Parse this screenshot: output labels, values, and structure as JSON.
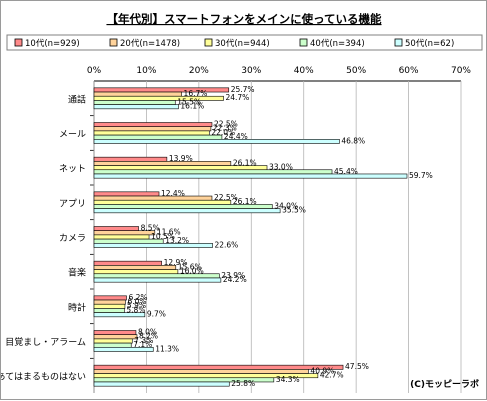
{
  "chart_data": {
    "type": "bar",
    "orientation": "horizontal",
    "title": "【年代別】スマートフォンをメインに使っている機能",
    "credit": "(C)モッピーラボ",
    "xlim": [
      0,
      70
    ],
    "x_ticks": [
      "0%",
      "10%",
      "20%",
      "30%",
      "40%",
      "50%",
      "60%",
      "70%"
    ],
    "grid": true,
    "legend_position": "top",
    "categories": [
      "通話",
      "メール",
      "ネット",
      "アプリ",
      "カメラ",
      "音楽",
      "時計",
      "目覚まし・アラーム",
      "あてはまるものはない"
    ],
    "series": [
      {
        "name": "10代(n=929)",
        "color": "#ff8a8a",
        "values": [
          25.7,
          22.5,
          13.9,
          12.4,
          8.5,
          12.9,
          6.2,
          8.0,
          47.5
        ],
        "labels": [
          "25.7%",
          "22.5%",
          "13.9%",
          "12.4%",
          "8.5%",
          "12.9%",
          "6.2%",
          "8.0%",
          "47.5%"
        ]
      },
      {
        "name": "20代(n=1478)",
        "color": "#ffd39b",
        "values": [
          16.7,
          22.3,
          26.1,
          22.5,
          11.6,
          15.6,
          6.0,
          8.2,
          40.9
        ],
        "labels": [
          "16.7%",
          "22.3%",
          "26.1%",
          "22.5%",
          "11.6%",
          "15.6%",
          "6.0%",
          "8.2%",
          "40.9%"
        ]
      },
      {
        "name": "30代(n=944)",
        "color": "#ffff99",
        "values": [
          24.7,
          22.0,
          33.0,
          26.1,
          10.5,
          16.0,
          5.9,
          7.3,
          42.7
        ],
        "labels": [
          "24.7%",
          "22.0%",
          "33.0%",
          "26.1%",
          "10.5%",
          "16.0%",
          "5.9%",
          "7.3%",
          "42.7%"
        ]
      },
      {
        "name": "40代(n=394)",
        "color": "#ccffcc",
        "values": [
          15.5,
          24.4,
          45.4,
          34.0,
          13.2,
          23.9,
          5.8,
          7.1,
          34.3
        ],
        "labels": [
          "15.5%",
          "24.4%",
          "45.4%",
          "34.0%",
          "13.2%",
          "23.9%",
          "5.8%",
          "7.1%",
          "34.3%"
        ]
      },
      {
        "name": "50代(n=62)",
        "color": "#ccffff",
        "values": [
          16.1,
          46.8,
          59.7,
          35.5,
          22.6,
          24.2,
          9.7,
          11.3,
          25.8
        ],
        "labels": [
          "16.1%",
          "46.8%",
          "59.7%",
          "35.5%",
          "22.6%",
          "24.2%",
          "9.7%",
          "11.3%",
          "25.8%"
        ]
      }
    ]
  }
}
